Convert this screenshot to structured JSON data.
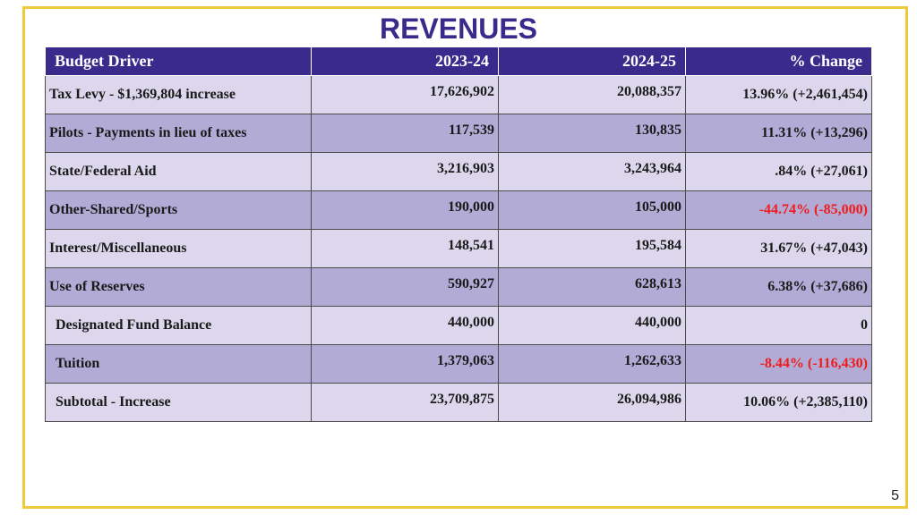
{
  "title": "REVENUES",
  "table": {
    "headers": {
      "budget_driver": "Budget Driver",
      "fy_2023_24": "2023-24",
      "fy_2024_25": "2024-25",
      "pct_change": "% Change"
    },
    "rows": [
      {
        "label": "Tax Levy - $1,369,804 increase",
        "y2023_24": "17,626,902",
        "y2024_25": "20,088,357",
        "change": "13.96% (+2,461,454)"
      },
      {
        "label": "Pilots - Payments in lieu of taxes",
        "y2023_24": "117,539",
        "y2024_25": "130,835",
        "change": "11.31% (+13,296)"
      },
      {
        "label": "State/Federal Aid",
        "y2023_24": "3,216,903",
        "y2024_25": "3,243,964",
        "change": ".84% (+27,061)"
      },
      {
        "label": "Other-Shared/Sports",
        "y2023_24": "190,000",
        "y2024_25": "105,000",
        "change": "-44.74% (-85,000)"
      },
      {
        "label": "Interest/Miscellaneous",
        "y2023_24": "148,541",
        "y2024_25": "195,584",
        "change": "31.67% (+47,043)"
      },
      {
        "label": "Use of Reserves",
        "y2023_24": "590,927",
        "y2024_25": "628,613",
        "change": "6.38% (+37,686)"
      },
      {
        "label": "Designated Fund Balance",
        "y2023_24": "440,000",
        "y2024_25": "440,000",
        "change": "0"
      },
      {
        "label": "Tuition",
        "y2023_24": "1,379,063",
        "y2024_25": "1,262,633",
        "change": "-8.44% (-116,430)"
      },
      {
        "label": "Subtotal - Increase",
        "y2023_24": "23,709,875",
        "y2024_25": "26,094,986",
        "change": "10.06% (+2,385,110)"
      }
    ]
  },
  "page_number": "5",
  "colors": {
    "title": "#3a2a8c",
    "header_bg": "#3a2a8c",
    "row_light": "#dcd7ec",
    "row_dark": "#b2abd6",
    "negative_text": "#ee1c1c",
    "frame_border": "#f0c93a"
  }
}
